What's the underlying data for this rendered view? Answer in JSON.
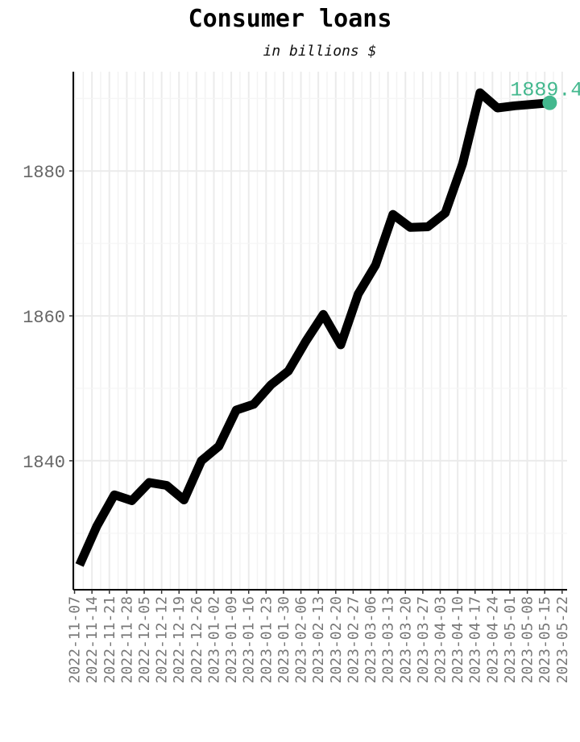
{
  "chart_data": {
    "type": "line",
    "title": "Consumer loans",
    "subtitle": "in billions $",
    "xlabel": "",
    "ylabel": "",
    "x_ticks": [
      "2022-11-07",
      "2022-11-14",
      "2022-11-21",
      "2022-11-28",
      "2022-12-05",
      "2022-12-12",
      "2022-12-19",
      "2022-12-26",
      "2023-01-02",
      "2023-01-09",
      "2023-01-16",
      "2023-01-23",
      "2023-01-30",
      "2023-02-06",
      "2023-02-13",
      "2023-02-20",
      "2023-02-27",
      "2023-03-06",
      "2023-03-13",
      "2023-03-20",
      "2023-03-27",
      "2023-04-03",
      "2023-04-10",
      "2023-04-17",
      "2023-04-24",
      "2023-05-01",
      "2023-05-08",
      "2023-05-15",
      "2023-05-22"
    ],
    "x": [
      "2022-11-09",
      "2022-11-16",
      "2022-11-23",
      "2022-11-30",
      "2022-12-07",
      "2022-12-14",
      "2022-12-21",
      "2022-12-28",
      "2023-01-04",
      "2023-01-11",
      "2023-01-18",
      "2023-01-25",
      "2023-02-01",
      "2023-02-08",
      "2023-02-15",
      "2023-02-22",
      "2023-03-01",
      "2023-03-08",
      "2023-03-15",
      "2023-03-22",
      "2023-03-29",
      "2023-04-05",
      "2023-04-12",
      "2023-04-19",
      "2023-04-26",
      "2023-05-03",
      "2023-05-10",
      "2023-05-17"
    ],
    "series": [
      {
        "values": [
          1825.6,
          1831,
          1835.3,
          1834.5,
          1837,
          1836.6,
          1834.6,
          1840,
          1842,
          1847,
          1847.8,
          1850.5,
          1852.4,
          1856.5,
          1860.2,
          1856,
          1863,
          1867,
          1874,
          1872.2,
          1872.3,
          1874.2,
          1881,
          1890.8,
          1888.7,
          1889,
          1889.2,
          1889.4
        ],
        "color": "#000000"
      }
    ],
    "highlight": {
      "value": "1889.4",
      "color": "#43b88e"
    },
    "ylim": [
      1822.2,
      1893.7
    ],
    "y_ticks": [
      1840,
      1860,
      1880
    ],
    "grid": true
  }
}
